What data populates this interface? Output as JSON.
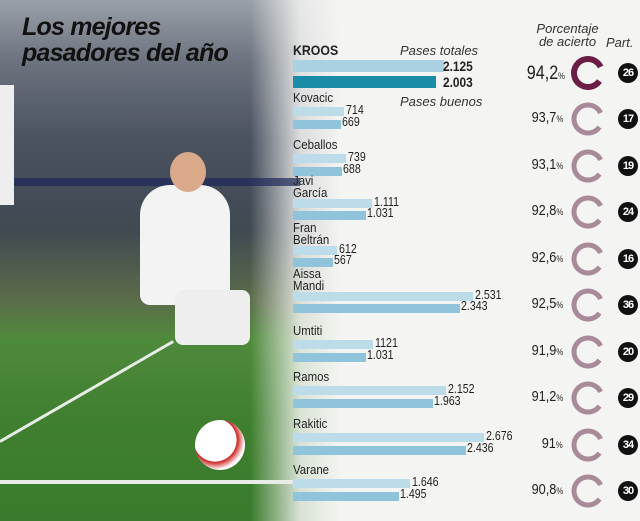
{
  "title_line1": "Los mejores",
  "title_line2": "pasadores del año",
  "headers": {
    "total": "Pases totales",
    "good": "Pases buenos",
    "pct_line1": "Porcentaje",
    "pct_line2": "de acierto",
    "matches": "Part."
  },
  "colors": {
    "total_bar": "#bcdcea",
    "good_bar": "#8fc4db",
    "highlight_total": "#a9d1e2",
    "highlight_good": "#1a8ca8",
    "highlight_ring": "#6b1d45",
    "ring": "#a88a99",
    "badge": "#111111"
  },
  "chart_data": {
    "type": "bar",
    "orientation": "horizontal",
    "categories": [
      "KROOS",
      "Kovacic",
      "Ceballos",
      "Javi García",
      "Fran Beltrán",
      "Aissa Mandi",
      "Umtiti",
      "Ramos",
      "Rakitic",
      "Varane"
    ],
    "series": [
      {
        "name": "Pases totales",
        "values": [
          2125,
          714,
          739,
          1111,
          612,
          2531,
          1121,
          2152,
          2676,
          1646
        ],
        "labels": [
          "2.125",
          "714",
          "739",
          "1.111",
          "612",
          "2.531",
          "1121",
          "2.152",
          "2.676",
          "1.646"
        ]
      },
      {
        "name": "Pases buenos",
        "values": [
          2003,
          669,
          688,
          1031,
          567,
          2343,
          1031,
          1963,
          2436,
          1495
        ],
        "labels": [
          "2.003",
          "669",
          "688",
          "1.031",
          "567",
          "2.343",
          "1.031",
          "1.963",
          "2.436",
          "1.495"
        ]
      }
    ],
    "accuracy": [
      "94,2",
      "93,7",
      "93,1",
      "92,8",
      "92,6",
      "92,5",
      "91,9",
      "91,2",
      "91",
      "90,8"
    ],
    "accuracy_unit": "%",
    "matches": [
      "26",
      "17",
      "19",
      "24",
      "16",
      "36",
      "20",
      "29",
      "34",
      "30"
    ]
  }
}
